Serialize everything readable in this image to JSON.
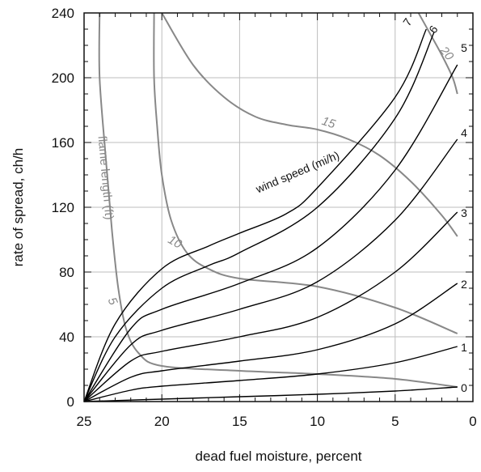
{
  "chart_data": {
    "type": "line",
    "title": "",
    "xlabel": "dead fuel moisture, percent",
    "ylabel": "rate of spread, ch/h",
    "xlim": [
      25,
      0
    ],
    "ylim": [
      0,
      240
    ],
    "x_ticks": [
      25,
      20,
      15,
      10,
      5,
      0
    ],
    "y_ticks": [
      0,
      40,
      80,
      120,
      160,
      200,
      240
    ],
    "grid": true,
    "wind_speed_label": "wind speed (mi/h)",
    "flame_length_label": "flame length (ft)",
    "wind_speed_color": "#000000",
    "flame_length_color": "#888888",
    "wind_series": [
      {
        "name": "0",
        "points": [
          [
            25,
            0
          ],
          [
            20,
            1.5
          ],
          [
            15,
            3
          ],
          [
            10,
            4.5
          ],
          [
            5,
            6.5
          ],
          [
            1,
            9
          ]
        ]
      },
      {
        "name": "1",
        "points": [
          [
            25,
            0
          ],
          [
            22,
            7
          ],
          [
            20,
            9.5
          ],
          [
            15,
            13
          ],
          [
            10,
            17
          ],
          [
            5,
            24
          ],
          [
            1,
            34
          ]
        ]
      },
      {
        "name": "2",
        "points": [
          [
            25,
            0
          ],
          [
            22,
            15
          ],
          [
            20,
            19
          ],
          [
            15,
            25
          ],
          [
            10,
            32
          ],
          [
            5,
            48
          ],
          [
            1,
            73
          ]
        ]
      },
      {
        "name": "3",
        "points": [
          [
            25,
            0
          ],
          [
            22,
            25
          ],
          [
            20,
            31
          ],
          [
            15,
            40
          ],
          [
            10,
            52
          ],
          [
            5,
            80
          ],
          [
            1,
            117
          ]
        ]
      },
      {
        "name": "4",
        "points": [
          [
            25,
            0
          ],
          [
            22,
            35
          ],
          [
            20,
            44
          ],
          [
            15,
            57
          ],
          [
            10,
            74
          ],
          [
            5,
            112
          ],
          [
            1,
            162
          ]
        ]
      },
      {
        "name": "5",
        "points": [
          [
            25,
            0
          ],
          [
            22,
            45
          ],
          [
            20,
            57
          ],
          [
            15,
            73
          ],
          [
            10,
            95
          ],
          [
            5,
            143
          ],
          [
            1,
            208
          ]
        ]
      },
      {
        "name": "6",
        "points": [
          [
            25,
            0
          ],
          [
            23,
            40
          ],
          [
            20,
            70
          ],
          [
            17,
            84
          ],
          [
            15,
            92
          ],
          [
            10,
            120
          ],
          [
            5,
            175
          ],
          [
            2.5,
            228
          ]
        ]
      },
      {
        "name": "7",
        "points": [
          [
            25,
            0
          ],
          [
            23,
            48
          ],
          [
            20,
            82
          ],
          [
            17,
            96
          ],
          [
            15,
            104
          ],
          [
            12,
            116
          ],
          [
            10,
            132
          ],
          [
            5,
            188
          ],
          [
            3,
            230
          ]
        ]
      }
    ],
    "flame_series": [
      {
        "name": "5",
        "points": [
          [
            24,
            240
          ],
          [
            24,
            200
          ],
          [
            23.6,
            150
          ],
          [
            23.2,
            105
          ],
          [
            22.8,
            70
          ],
          [
            22.3,
            45
          ],
          [
            21.5,
            30
          ],
          [
            20,
            22
          ],
          [
            15,
            19
          ],
          [
            10,
            17
          ],
          [
            5,
            14
          ],
          [
            1,
            9
          ]
        ]
      },
      {
        "name": "10",
        "points": [
          [
            20.5,
            240
          ],
          [
            20.5,
            200
          ],
          [
            20.3,
            170
          ],
          [
            20,
            140
          ],
          [
            19.4,
            112
          ],
          [
            18.4,
            92
          ],
          [
            17,
            82
          ],
          [
            15,
            76
          ],
          [
            10,
            71
          ],
          [
            5,
            58
          ],
          [
            1,
            42
          ]
        ]
      },
      {
        "name": "15",
        "points": [
          [
            20,
            240
          ],
          [
            18,
            208
          ],
          [
            16,
            188
          ],
          [
            14,
            176
          ],
          [
            12,
            171
          ],
          [
            10,
            168
          ],
          [
            8,
            162
          ],
          [
            6,
            152
          ],
          [
            4,
            136
          ],
          [
            2,
            115
          ],
          [
            1,
            102
          ]
        ]
      },
      {
        "name": "20",
        "points": [
          [
            3.5,
            240
          ],
          [
            2.8,
            228
          ],
          [
            2,
            214
          ],
          [
            1.3,
            200
          ],
          [
            1,
            190
          ]
        ]
      }
    ]
  }
}
